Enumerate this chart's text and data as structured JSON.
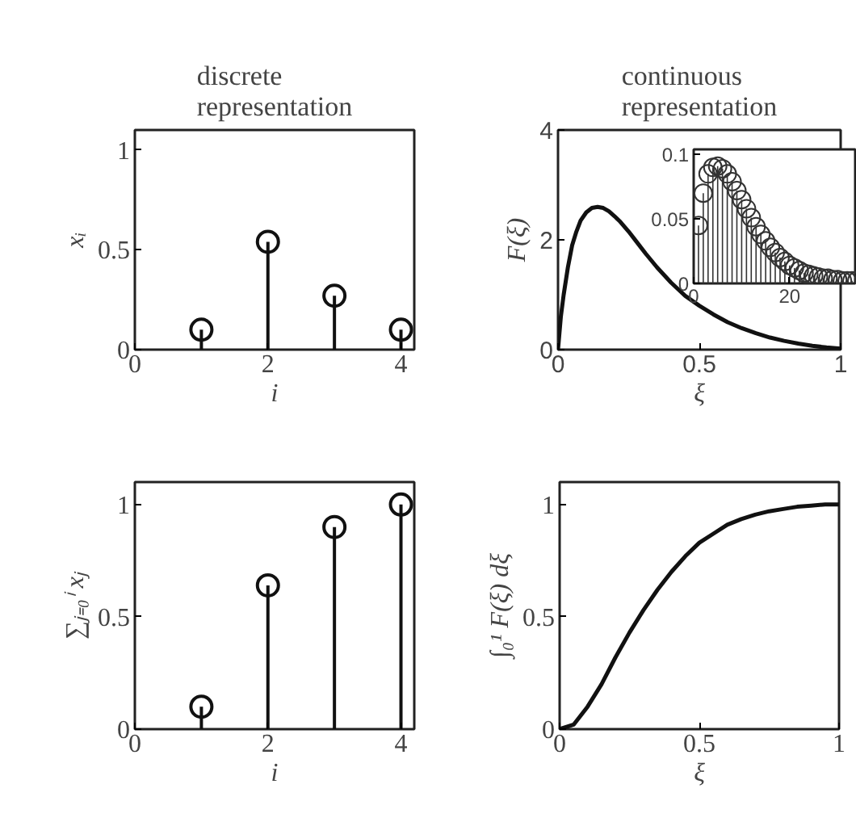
{
  "chart_data": [
    {
      "type": "lollipop",
      "title": "discrete\nrepresentation",
      "xlabel": "i",
      "ylabel": "xᵢ",
      "x": [
        1,
        2,
        3,
        4
      ],
      "values": [
        0.1,
        0.54,
        0.27,
        0.1
      ],
      "color": "#111111",
      "marker": "circle",
      "xlim": [
        0,
        4.2
      ],
      "ylim": [
        0,
        1.1
      ],
      "xticks": [
        0,
        2,
        4
      ],
      "yticks": [
        0,
        0.5,
        1
      ]
    },
    {
      "type": "line",
      "title": "continuous\nrepresentation",
      "xlabel": "ξ",
      "ylabel": "F(ξ)",
      "color": "#111111",
      "x": [
        0,
        0.01,
        0.02,
        0.035,
        0.05,
        0.065,
        0.08,
        0.1,
        0.12,
        0.14,
        0.16,
        0.18,
        0.2,
        0.22,
        0.25,
        0.28,
        0.31,
        0.35,
        0.4,
        0.45,
        0.5,
        0.55,
        0.6,
        0.65,
        0.7,
        0.75,
        0.8,
        0.85,
        0.9,
        0.95,
        1.0
      ],
      "values": [
        0,
        0.6,
        1.0,
        1.5,
        1.9,
        2.15,
        2.35,
        2.5,
        2.58,
        2.6,
        2.58,
        2.52,
        2.43,
        2.33,
        2.15,
        1.95,
        1.75,
        1.5,
        1.22,
        0.98,
        0.8,
        0.64,
        0.5,
        0.39,
        0.3,
        0.22,
        0.16,
        0.11,
        0.07,
        0.04,
        0.02
      ],
      "xlim": [
        0,
        1
      ],
      "ylim": [
        0,
        4
      ],
      "xticks": [
        0,
        0.5,
        1
      ],
      "yticks": [
        0,
        2,
        4
      ]
    },
    {
      "type": "lollipop",
      "color": "#333333",
      "marker": "circle",
      "x": [
        1,
        2,
        3,
        4,
        5,
        6,
        7,
        8,
        9,
        10,
        11,
        12,
        13,
        14,
        15,
        16,
        17,
        18,
        19,
        20,
        21,
        22,
        23,
        24,
        25,
        26,
        27,
        28,
        29,
        30,
        31,
        32,
        33,
        34
      ],
      "values": [
        0.045,
        0.07,
        0.085,
        0.09,
        0.091,
        0.089,
        0.085,
        0.079,
        0.072,
        0.065,
        0.058,
        0.051,
        0.044,
        0.038,
        0.033,
        0.028,
        0.024,
        0.02,
        0.017,
        0.014,
        0.012,
        0.01,
        0.008,
        0.007,
        0.006,
        0.005,
        0.004,
        0.004,
        0.003,
        0.003,
        0.002,
        0.002,
        0.002,
        0.002
      ],
      "xlim": [
        0,
        34
      ],
      "ylim": [
        0,
        0.104
      ],
      "xticks": [
        0,
        20
      ],
      "yticks": [
        0,
        0.05,
        0.1
      ]
    },
    {
      "type": "lollipop",
      "xlabel": "i",
      "ylabel": "∑ⱼ₌₀ⁱ xⱼ",
      "x": [
        1,
        2,
        3,
        4
      ],
      "values": [
        0.1,
        0.64,
        0.9,
        1.0
      ],
      "color": "#111111",
      "marker": "circle",
      "xlim": [
        0,
        4.2
      ],
      "ylim": [
        0,
        1.1
      ],
      "xticks": [
        0,
        2,
        4
      ],
      "yticks": [
        0,
        0.5,
        1
      ]
    },
    {
      "type": "line",
      "xlabel": "ξ",
      "ylabel": "∫₀¹ F(ξ) dξ",
      "color": "#111111",
      "x": [
        0,
        0.05,
        0.1,
        0.15,
        0.2,
        0.25,
        0.3,
        0.35,
        0.4,
        0.45,
        0.5,
        0.55,
        0.6,
        0.65,
        0.7,
        0.75,
        0.8,
        0.85,
        0.9,
        0.95,
        1.0
      ],
      "values": [
        0,
        0.02,
        0.1,
        0.2,
        0.32,
        0.43,
        0.53,
        0.62,
        0.7,
        0.77,
        0.83,
        0.87,
        0.91,
        0.935,
        0.955,
        0.97,
        0.98,
        0.99,
        0.995,
        1.0,
        1.0
      ],
      "xlim": [
        0,
        1
      ],
      "ylim": [
        0,
        1.1
      ],
      "xticks": [
        0,
        0.5,
        1
      ],
      "yticks": [
        0,
        0.5,
        1
      ]
    }
  ]
}
